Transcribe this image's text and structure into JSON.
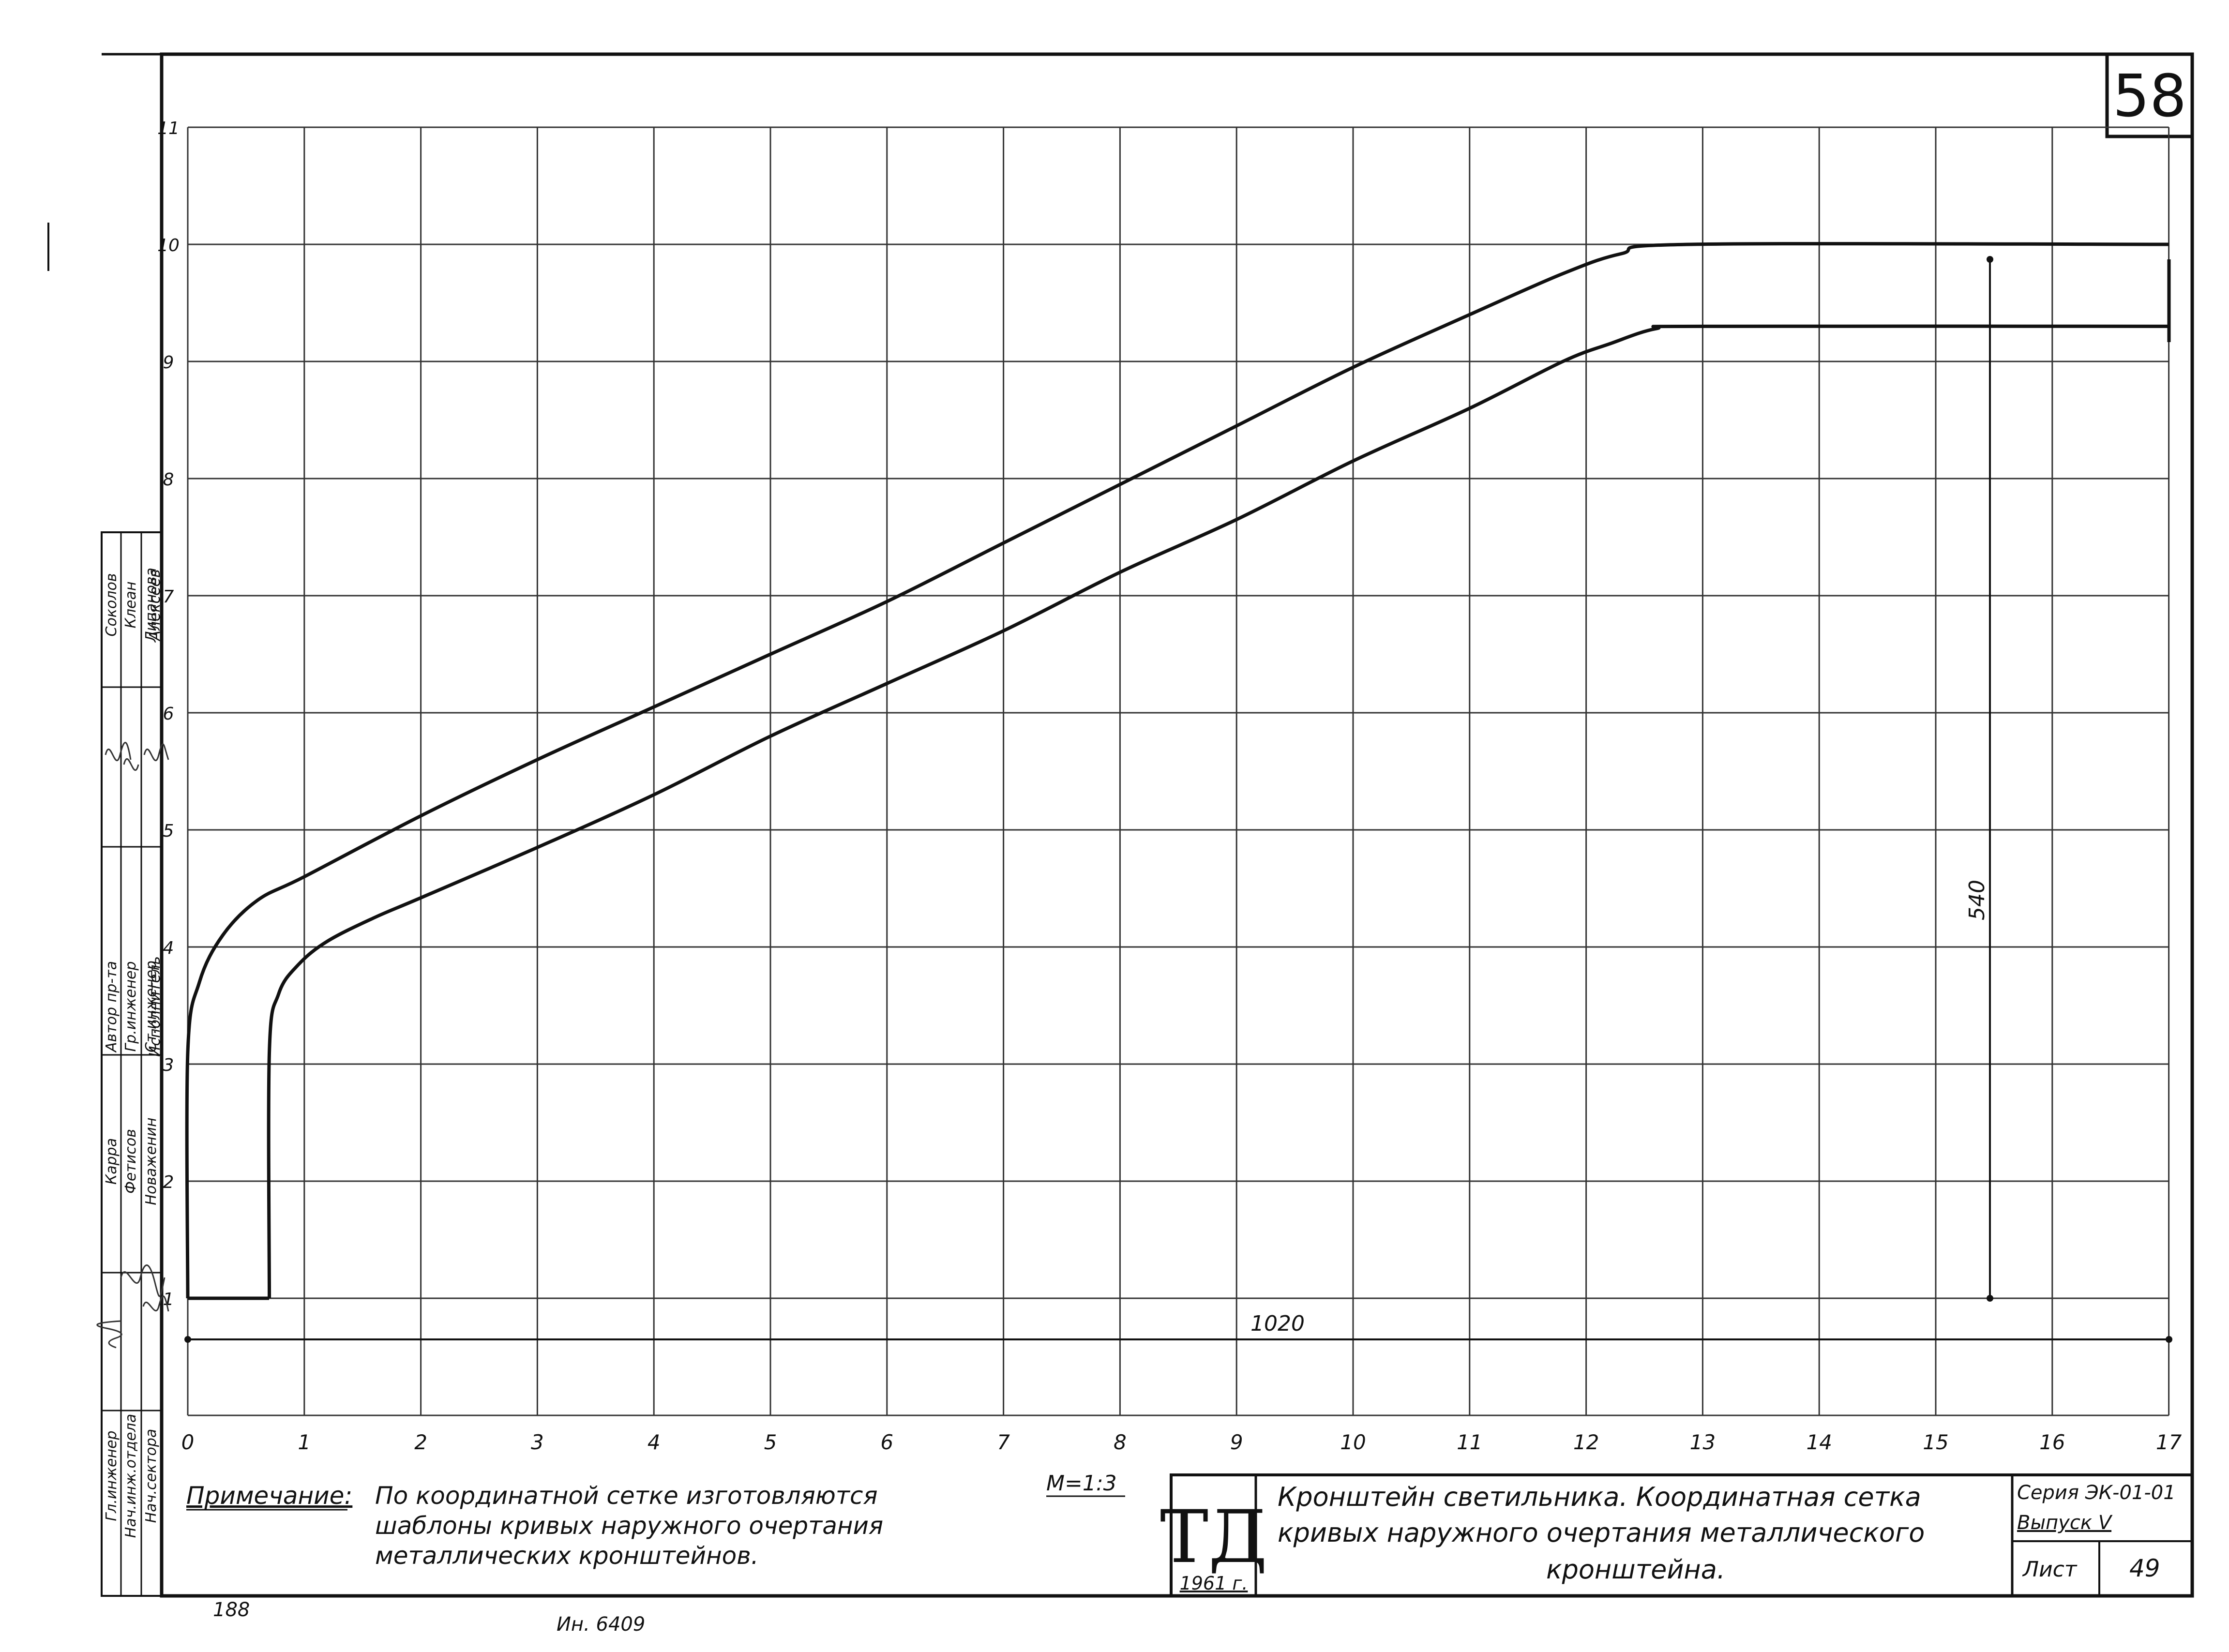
{
  "sheet_number": "58",
  "grid": {
    "x_ticks": [
      "0",
      "1",
      "2",
      "3",
      "4",
      "5",
      "6",
      "7",
      "8",
      "9",
      "10",
      "11",
      "12",
      "13",
      "14",
      "15",
      "16",
      "17"
    ],
    "y_ticks": [
      "1",
      "2",
      "3",
      "4",
      "5",
      "6",
      "7",
      "8",
      "9",
      "10",
      "11"
    ],
    "x_range": [
      0,
      17
    ],
    "y_range": [
      0,
      11
    ]
  },
  "dimensions": {
    "width_label": "1020",
    "height_label": "540"
  },
  "curves": {
    "outer": [
      [
        0,
        1
      ],
      [
        0,
        3.1
      ],
      [
        0.1,
        3.7
      ],
      [
        0.3,
        4.1
      ],
      [
        0.6,
        4.4
      ],
      [
        1,
        4.6
      ],
      [
        2,
        5.12
      ],
      [
        3,
        5.6
      ],
      [
        4,
        6.05
      ],
      [
        5,
        6.5
      ],
      [
        6,
        6.95
      ],
      [
        7,
        7.45
      ],
      [
        8,
        7.95
      ],
      [
        9,
        8.45
      ],
      [
        10,
        8.95
      ],
      [
        11,
        9.4
      ],
      [
        11.8,
        9.75
      ],
      [
        12.3,
        9.92
      ],
      [
        12.9,
        10
      ],
      [
        17,
        10
      ]
    ],
    "inner": [
      [
        0.7,
        1
      ],
      [
        0.7,
        3.1
      ],
      [
        0.78,
        3.6
      ],
      [
        0.95,
        3.85
      ],
      [
        1.2,
        4.05
      ],
      [
        1.6,
        4.25
      ],
      [
        2,
        4.42
      ],
      [
        3,
        4.85
      ],
      [
        4,
        5.3
      ],
      [
        5,
        5.8
      ],
      [
        6,
        6.25
      ],
      [
        7,
        6.7
      ],
      [
        8,
        7.2
      ],
      [
        9,
        7.65
      ],
      [
        10,
        8.15
      ],
      [
        11,
        8.6
      ],
      [
        11.8,
        9
      ],
      [
        12.2,
        9.15
      ],
      [
        12.6,
        9.28
      ],
      [
        13,
        9.3
      ],
      [
        17,
        9.3
      ]
    ]
  },
  "note": {
    "label": "Примечание:",
    "line1": "По координатной сетке изготовляются",
    "line2": "шаблоны кривых наружного очертания",
    "line3": "металлических кронштейнов."
  },
  "scale": "М=1:3",
  "title_block": {
    "logo_letters": "ТД",
    "logo_year": "1961 г.",
    "title_line1": "Кронштейн светильника. Координатная сетка",
    "title_line2": "кривых наружного очертания металлического",
    "title_line3": "кронштейна.",
    "series_label": "Серия ЭК-01-01",
    "issue_label": "Выпуск V",
    "sheet_label": "Лист",
    "sheet_value": "49"
  },
  "stamp": {
    "roles": [
      "Гл.инженер",
      "Нач.инж.отдела",
      "Нач.сектора",
      "Автор пр-та",
      "Гр.инженер",
      "Ст.инженер",
      "Исполнитель"
    ],
    "names": [
      "Карра",
      "Фетисов",
      "Новаженин",
      "Соколов",
      "Клеан",
      "Липанова",
      "Алексеев"
    ]
  },
  "footer": {
    "left": "188",
    "middle": "Ин. 6409"
  },
  "colors": {
    "ink": "#111111",
    "grid": "#333333",
    "paper": "#ffffff"
  }
}
